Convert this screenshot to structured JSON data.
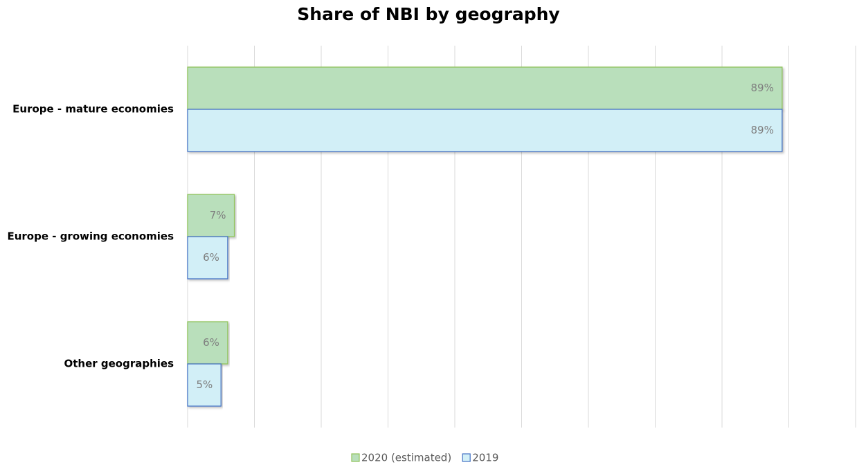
{
  "chart_data": {
    "type": "barh",
    "title": "Share of NBI by geography",
    "categories": [
      "Europe - mature economies",
      "Europe - growing economies",
      "Other geographies"
    ],
    "series": [
      {
        "name": "2020 (estimated)",
        "fill": "#b9dfbb",
        "color": "#8fc35a",
        "values": [
          89,
          7,
          6
        ],
        "value_labels": [
          "89%",
          "7%",
          "6%"
        ]
      },
      {
        "name": "2019",
        "fill": "#d2eff7",
        "color": "#4472c4",
        "values": [
          89,
          6,
          5
        ],
        "value_labels": [
          "89%",
          "6%",
          "5%"
        ]
      }
    ],
    "xlim": [
      0,
      100
    ],
    "xticks": [
      0,
      10,
      20,
      30,
      40,
      50,
      60,
      70,
      80,
      90,
      100
    ],
    "grid": true,
    "legend": "bottom"
  }
}
